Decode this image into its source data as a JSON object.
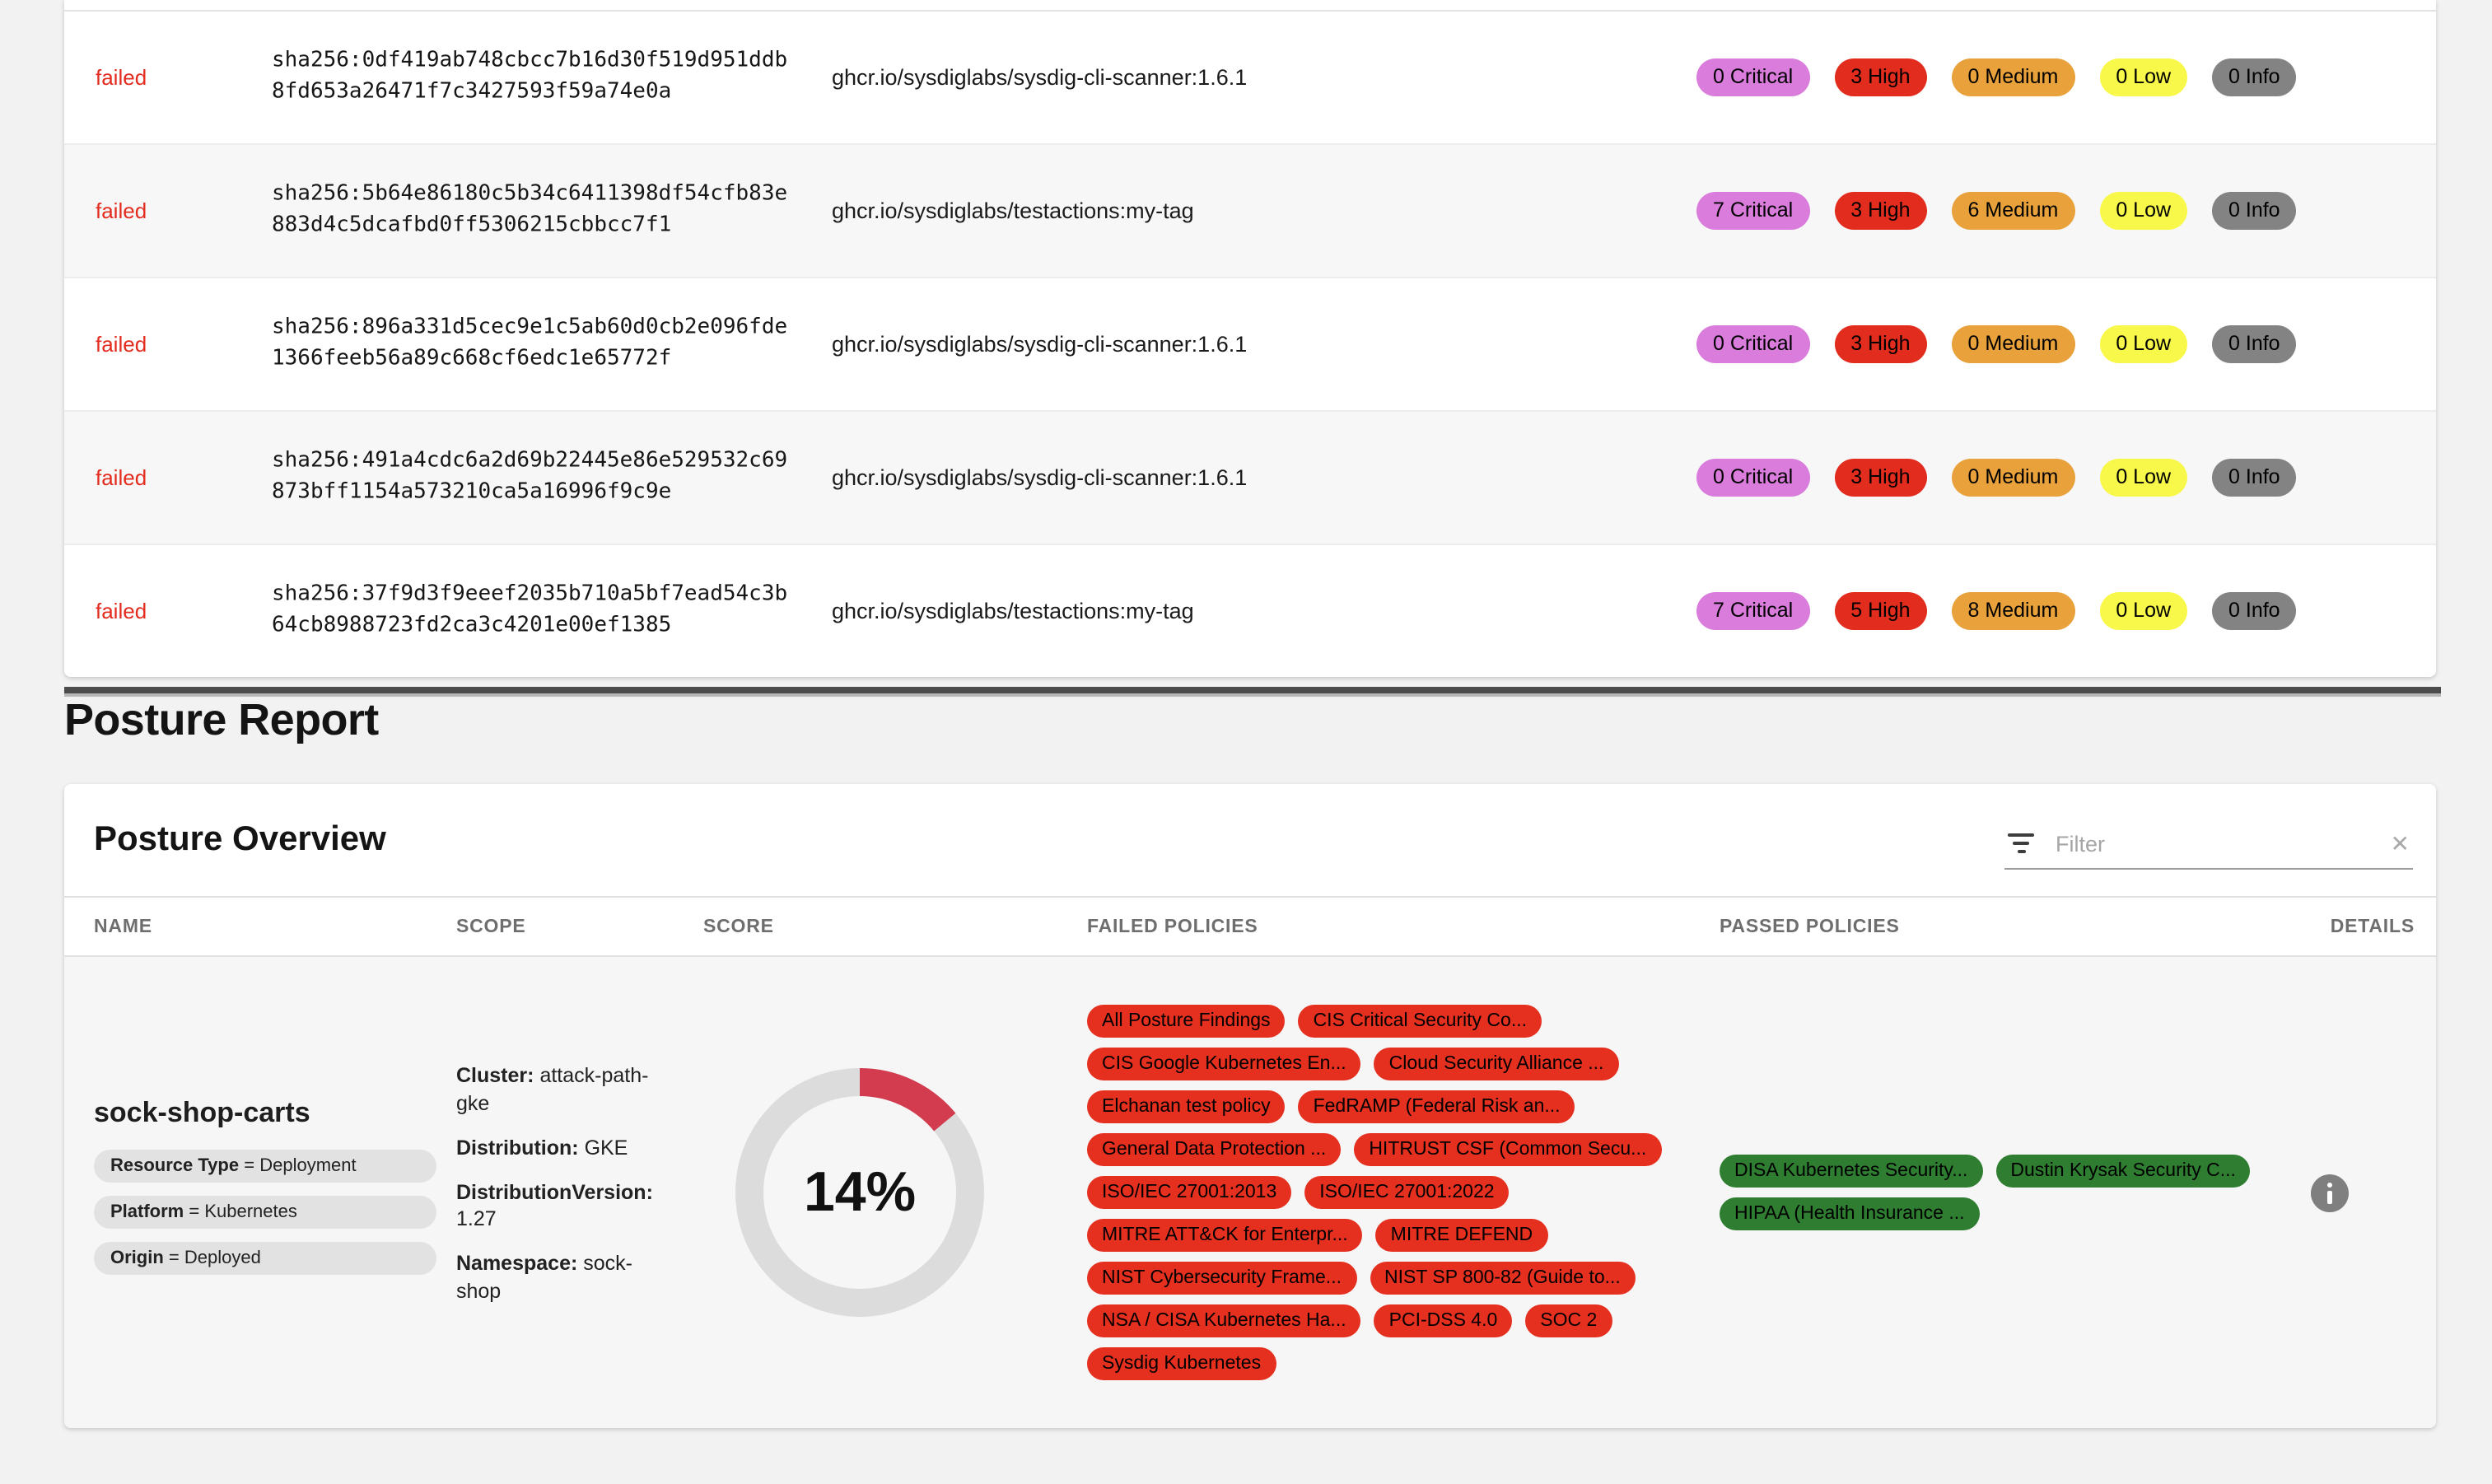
{
  "colors": {
    "critical": "#d97cdc",
    "high": "#e12c1e",
    "medium": "#e9a23b",
    "low": "#f8f84a",
    "info": "#838383",
    "failed_text": "#e32b1e",
    "failed_chip": "#e5301f",
    "passed_chip": "#2e7d31",
    "score_arc": "#d23c4e",
    "score_track": "#dcdcdd"
  },
  "scan_table": {
    "rows": [
      {
        "status": "failed",
        "digest": "sha256:0df419ab748cbcc7b16d30f519d951ddb8fd653a26471f7c3427593f59a74e0a",
        "image": "ghcr.io/sysdiglabs/sysdig-cli-scanner:1.6.1",
        "severities": [
          {
            "text": "0 Critical",
            "cls": "sev-critical"
          },
          {
            "text": "3 High",
            "cls": "sev-high"
          },
          {
            "text": "0 Medium",
            "cls": "sev-medium"
          },
          {
            "text": "0 Low",
            "cls": "sev-low"
          },
          {
            "text": "0 Info",
            "cls": "sev-info"
          }
        ]
      },
      {
        "status": "failed",
        "digest": "sha256:5b64e86180c5b34c6411398df54cfb83e883d4c5dcafbd0ff5306215cbbcc7f1",
        "image": "ghcr.io/sysdiglabs/testactions:my-tag",
        "severities": [
          {
            "text": "7 Critical",
            "cls": "sev-critical"
          },
          {
            "text": "3 High",
            "cls": "sev-high"
          },
          {
            "text": "6 Medium",
            "cls": "sev-medium"
          },
          {
            "text": "0 Low",
            "cls": "sev-low"
          },
          {
            "text": "0 Info",
            "cls": "sev-info"
          }
        ]
      },
      {
        "status": "failed",
        "digest": "sha256:896a331d5cec9e1c5ab60d0cb2e096fde1366feeb56a89c668cf6edc1e65772f",
        "image": "ghcr.io/sysdiglabs/sysdig-cli-scanner:1.6.1",
        "severities": [
          {
            "text": "0 Critical",
            "cls": "sev-critical"
          },
          {
            "text": "3 High",
            "cls": "sev-high"
          },
          {
            "text": "0 Medium",
            "cls": "sev-medium"
          },
          {
            "text": "0 Low",
            "cls": "sev-low"
          },
          {
            "text": "0 Info",
            "cls": "sev-info"
          }
        ]
      },
      {
        "status": "failed",
        "digest": "sha256:491a4cdc6a2d69b22445e86e529532c69873bff1154a573210ca5a16996f9c9e",
        "image": "ghcr.io/sysdiglabs/sysdig-cli-scanner:1.6.1",
        "severities": [
          {
            "text": "0 Critical",
            "cls": "sev-critical"
          },
          {
            "text": "3 High",
            "cls": "sev-high"
          },
          {
            "text": "0 Medium",
            "cls": "sev-medium"
          },
          {
            "text": "0 Low",
            "cls": "sev-low"
          },
          {
            "text": "0 Info",
            "cls": "sev-info"
          }
        ]
      },
      {
        "status": "failed",
        "digest": "sha256:37f9d3f9eeef2035b710a5bf7ead54c3b64cb8988723fd2ca3c4201e00ef1385",
        "image": "ghcr.io/sysdiglabs/testactions:my-tag",
        "severities": [
          {
            "text": "7 Critical",
            "cls": "sev-critical"
          },
          {
            "text": "5 High",
            "cls": "sev-high"
          },
          {
            "text": "8 Medium",
            "cls": "sev-medium"
          },
          {
            "text": "0 Low",
            "cls": "sev-low"
          },
          {
            "text": "0 Info",
            "cls": "sev-info"
          }
        ]
      }
    ]
  },
  "posture": {
    "section_title": "Posture Report",
    "panel_title": "Posture Overview",
    "filter_placeholder": "Filter",
    "filter_clear_glyph": "✕",
    "columns": [
      "NAME",
      "SCOPE",
      "SCORE",
      "FAILED POLICIES",
      "PASSED POLICIES",
      "DETAILS"
    ],
    "row": {
      "name": "sock-shop-carts",
      "tags": [
        {
          "key": "Resource Type",
          "value": "Deployment"
        },
        {
          "key": "Platform",
          "value": "Kubernetes"
        },
        {
          "key": "Origin",
          "value": "Deployed"
        }
      ],
      "scope": [
        {
          "key": "Cluster",
          "value": "attack-path-gke"
        },
        {
          "key": "Distribution",
          "value": "GKE"
        },
        {
          "key": "DistributionVersion",
          "value": "1.27"
        },
        {
          "key": "Namespace",
          "value": "sock-shop"
        }
      ],
      "score_percent": 14,
      "score_label": "14%",
      "failed_policies": [
        "All Posture Findings",
        "CIS Critical Security Co...",
        "CIS Google Kubernetes En...",
        "Cloud Security Alliance ...",
        "Elchanan test policy",
        "FedRAMP (Federal Risk an...",
        "General Data Protection ...",
        "HITRUST CSF (Common Secu...",
        "ISO/IEC 27001:2013",
        "ISO/IEC 27001:2022",
        "MITRE ATT&CK for Enterpr...",
        "MITRE DEFEND",
        "NIST Cybersecurity Frame...",
        "NIST SP 800-82 (Guide to...",
        "NSA / CISA Kubernetes Ha...",
        "PCI-DSS 4.0",
        "SOC 2",
        "Sysdig Kubernetes"
      ],
      "passed_policies": [
        "DISA Kubernetes Security...",
        "Dustin Krysak Security C...",
        "HIPAA (Health Insurance ..."
      ]
    }
  }
}
